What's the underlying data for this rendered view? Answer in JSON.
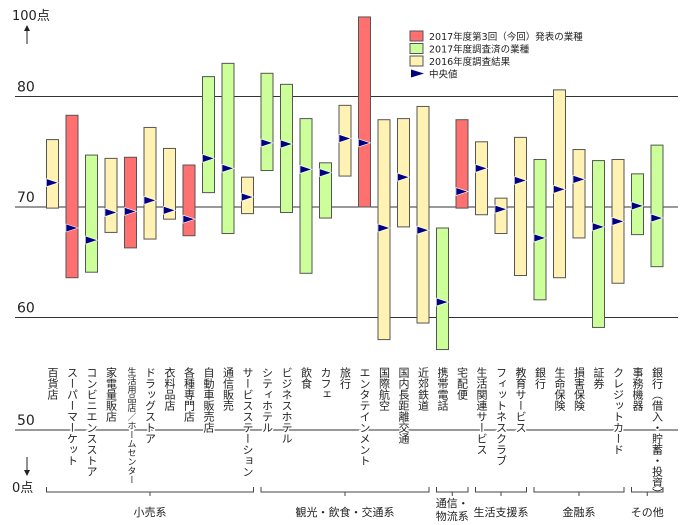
{
  "chart_data": {
    "type": "range-bar",
    "y_axis": {
      "top_label": "100点",
      "bottom_label": "0点",
      "tick_labels": [
        "80",
        "70",
        "60",
        "50"
      ],
      "ticks": [
        80,
        70,
        60,
        50
      ],
      "ylim": [
        56,
        88
      ],
      "broken_axis": true
    },
    "grid": true,
    "legend_position": "top-right",
    "legend": [
      {
        "key": "current",
        "label": "2017年度第3回（今回）発表の業種",
        "color": "#ff7070"
      },
      {
        "key": "surveyed",
        "label": "2017年度調査済の業種",
        "color": "#ccff99"
      },
      {
        "key": "prev",
        "label": "2016年度調査結果",
        "color": "#fff2b3"
      },
      {
        "key": "median",
        "label": "中央値",
        "color": "#000080"
      }
    ],
    "categories": [
      {
        "name": "百貨店",
        "kind": "prev",
        "low": 69.9,
        "high": 76.1,
        "median": 72.2
      },
      {
        "name": "スーパーマーケット",
        "kind": "current",
        "low": 63.6,
        "high": 78.3,
        "median": 68.1
      },
      {
        "name": "コンビニエンスストア",
        "kind": "surveyed",
        "low": 64.1,
        "high": 74.7,
        "median": 67.0
      },
      {
        "name": "家電量販店",
        "kind": "prev",
        "low": 67.7,
        "high": 74.4,
        "median": 69.5
      },
      {
        "name": "生活用品店／ホームセンター",
        "kind": "current",
        "low": 66.3,
        "high": 74.5,
        "median": 69.6,
        "small": true
      },
      {
        "name": "ドラッグストア",
        "kind": "prev",
        "low": 67.1,
        "high": 77.2,
        "median": 70.6
      },
      {
        "name": "衣料品店",
        "kind": "prev",
        "low": 68.9,
        "high": 75.3,
        "median": 69.7
      },
      {
        "name": "各種専門店",
        "kind": "current",
        "low": 67.4,
        "high": 73.8,
        "median": 68.9
      },
      {
        "name": "自動車販売店",
        "kind": "surveyed",
        "low": 71.3,
        "high": 81.8,
        "median": 74.4
      },
      {
        "name": "通信販売",
        "kind": "surveyed",
        "low": 67.6,
        "high": 83.0,
        "median": 73.5
      },
      {
        "name": "サービスステーション",
        "kind": "prev",
        "low": 69.4,
        "high": 72.7,
        "median": 70.9
      },
      {
        "name": "シティホテル",
        "kind": "surveyed",
        "low": 73.3,
        "high": 82.1,
        "median": 75.8
      },
      {
        "name": "ビジネスホテル",
        "kind": "surveyed",
        "low": 69.5,
        "high": 81.1,
        "median": 75.7
      },
      {
        "name": "飲食",
        "kind": "surveyed",
        "low": 64.0,
        "high": 78.0,
        "median": 73.4
      },
      {
        "name": "カフェ",
        "kind": "surveyed",
        "low": 69.0,
        "high": 74.0,
        "median": 73.1
      },
      {
        "name": "旅行",
        "kind": "prev",
        "low": 72.8,
        "high": 79.2,
        "median": 76.2
      },
      {
        "name": "エンタテインメント",
        "kind": "current",
        "low": 70.0,
        "high": 87.2,
        "median": 75.8
      },
      {
        "name": "国際航空",
        "kind": "prev",
        "low": 58.0,
        "high": 77.9,
        "median": 68.1
      },
      {
        "name": "国内長距離交通",
        "kind": "prev",
        "low": 68.2,
        "high": 78.0,
        "median": 72.7
      },
      {
        "name": "近郊鉄道",
        "kind": "prev",
        "low": 59.5,
        "high": 79.1,
        "median": 67.9
      },
      {
        "name": "携帯電話",
        "kind": "surveyed",
        "low": 57.1,
        "high": 68.1,
        "median": 61.4
      },
      {
        "name": "宅配便",
        "kind": "current",
        "low": 69.9,
        "high": 77.9,
        "median": 71.4
      },
      {
        "name": "生活関連サービス",
        "kind": "prev",
        "low": 69.3,
        "high": 75.9,
        "median": 73.5
      },
      {
        "name": "フィットネスクラブ",
        "kind": "prev",
        "low": 67.6,
        "high": 70.8,
        "median": 69.8
      },
      {
        "name": "教育サービス",
        "kind": "prev",
        "low": 63.8,
        "high": 76.3,
        "median": 72.4
      },
      {
        "name": "銀行",
        "kind": "surveyed",
        "low": 61.6,
        "high": 74.3,
        "median": 67.2
      },
      {
        "name": "生命保険",
        "kind": "prev",
        "low": 63.6,
        "high": 80.6,
        "median": 71.6
      },
      {
        "name": "損害保険",
        "kind": "prev",
        "low": 67.2,
        "high": 75.2,
        "median": 72.5
      },
      {
        "name": "証券",
        "kind": "surveyed",
        "low": 59.1,
        "high": 74.2,
        "median": 68.2
      },
      {
        "name": "クレジットカード",
        "kind": "prev",
        "low": 63.1,
        "high": 74.3,
        "median": 68.7
      },
      {
        "name": "事務機器",
        "kind": "surveyed",
        "low": 67.5,
        "high": 73.0,
        "median": 70.1
      },
      {
        "name": "銀行（借入・貯蓄・投資）",
        "kind": "surveyed",
        "low": 64.6,
        "high": 75.6,
        "median": 69.0
      }
    ],
    "groups": [
      {
        "label": "小売系",
        "from": 0,
        "to": 10
      },
      {
        "label": "観光・飲食・交通系",
        "from": 11,
        "to": 19
      },
      {
        "label": "通信・\n物流系",
        "from": 20,
        "to": 21
      },
      {
        "label": "生活支援系",
        "from": 22,
        "to": 24
      },
      {
        "label": "金融系",
        "from": 25,
        "to": 29
      },
      {
        "label": "その他",
        "from": 30,
        "to": 31
      }
    ]
  }
}
